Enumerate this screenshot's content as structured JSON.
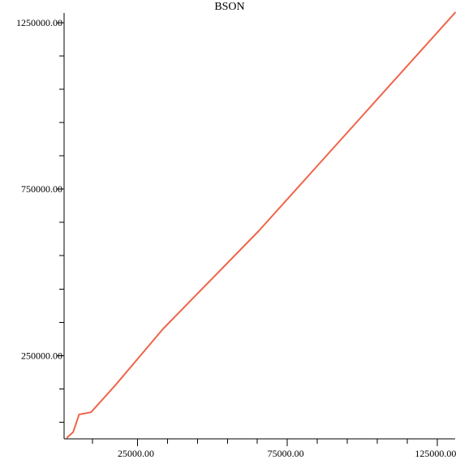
{
  "chart_data": {
    "type": "line",
    "title": "BSON",
    "xlabel": "",
    "ylabel": "",
    "xlim": [
      500,
      131000
    ],
    "ylim": [
      0,
      1279000
    ],
    "x_ticks": [
      {
        "value": 25000,
        "label": "25000.00"
      },
      {
        "value": 75000,
        "label": "75000.00"
      },
      {
        "value": 125000,
        "label": "125000.00"
      }
    ],
    "x_minor_ticks": [
      10000,
      35000,
      45000,
      55000,
      65000,
      85000,
      95000,
      105000,
      115000
    ],
    "y_ticks": [
      {
        "value": 250000,
        "label": "250000.00"
      },
      {
        "value": 750000,
        "label": "750000.00"
      },
      {
        "value": 1250000,
        "label": "1250000.00"
      }
    ],
    "y_minor_ticks": [
      50000,
      150000,
      350000,
      450000,
      550000,
      650000,
      850000,
      950000,
      1050000,
      1150000
    ],
    "grid": false,
    "legend": "none",
    "series": [
      {
        "color": "#f0644a",
        "x": [
          1500,
          3500,
          5500,
          9500,
          17500,
          33500,
          65500,
          131000
        ],
        "y": [
          4000,
          20000,
          73000,
          80000,
          160000,
          330000,
          625000,
          1280000
        ]
      }
    ]
  }
}
